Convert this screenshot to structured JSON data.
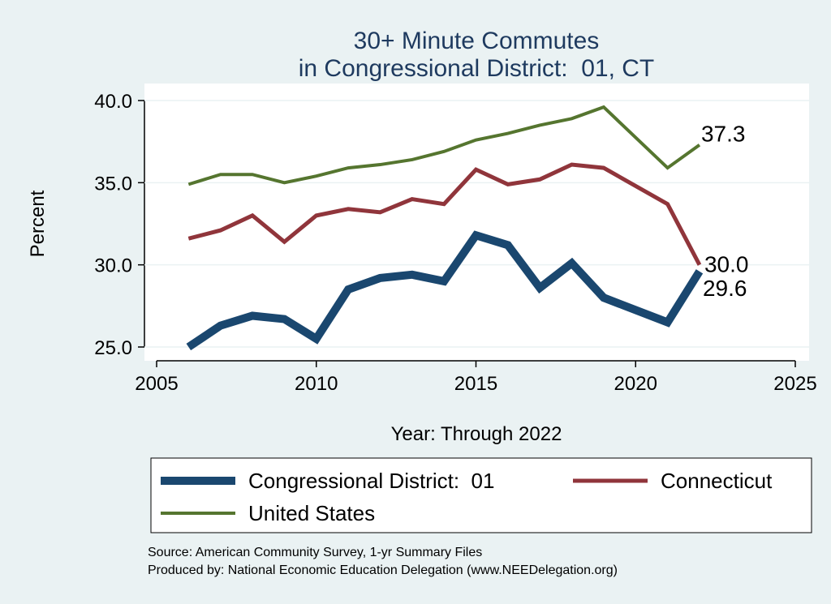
{
  "chart_data": {
    "type": "line",
    "title": [
      "30+ Minute Commutes",
      "in Congressional District:  01, CT"
    ],
    "xlabel": "Year: Through 2022",
    "ylabel": "Percent",
    "x": [
      2006,
      2007,
      2008,
      2009,
      2010,
      2011,
      2012,
      2013,
      2014,
      2015,
      2016,
      2017,
      2018,
      2019,
      2021,
      2022
    ],
    "series": [
      {
        "name": "Congressional District:  01",
        "color": "#1a476f",
        "values": [
          25.0,
          26.3,
          26.9,
          26.7,
          25.5,
          28.5,
          29.2,
          29.4,
          29.0,
          31.8,
          31.2,
          28.6,
          30.1,
          28.0,
          26.5,
          29.6
        ],
        "value_labels": [
          null,
          null,
          null,
          null,
          null,
          null,
          null,
          null,
          null,
          null,
          null,
          null,
          null,
          null,
          null,
          "29.6"
        ]
      },
      {
        "name": "Connecticut",
        "color": "#90353b",
        "values": [
          31.6,
          32.1,
          33.0,
          31.4,
          33.0,
          33.4,
          33.2,
          34.0,
          33.7,
          35.8,
          34.9,
          35.2,
          36.1,
          35.9,
          33.7,
          30.0
        ],
        "value_labels": [
          null,
          null,
          null,
          null,
          null,
          null,
          null,
          null,
          null,
          null,
          null,
          null,
          null,
          null,
          null,
          "30.0"
        ]
      },
      {
        "name": "United States",
        "color": "#55752f",
        "values": [
          34.9,
          35.5,
          35.5,
          35.0,
          35.4,
          35.9,
          36.1,
          36.4,
          36.9,
          37.6,
          38.0,
          38.5,
          38.9,
          39.6,
          35.9,
          37.3
        ],
        "value_labels": [
          null,
          null,
          null,
          null,
          null,
          null,
          null,
          null,
          null,
          null,
          null,
          null,
          null,
          null,
          null,
          "37.3"
        ]
      }
    ],
    "xlim": [
      2005,
      2025
    ],
    "xticks": [
      2005,
      2010,
      2015,
      2020,
      2025
    ],
    "ylim": [
      25,
      40
    ],
    "yticks": [
      {
        "value": 25,
        "label": "25.0"
      },
      {
        "value": 30,
        "label": "30.0"
      },
      {
        "value": 35,
        "label": "35.0"
      },
      {
        "value": 40,
        "label": "40.0"
      }
    ],
    "grid": true,
    "legend": "bottom",
    "notes": [
      "Source: American Community Survey, 1-yr Summary Files",
      "Produced by: National Economic Education Delegation (www.NEEDelegation.org)"
    ]
  }
}
